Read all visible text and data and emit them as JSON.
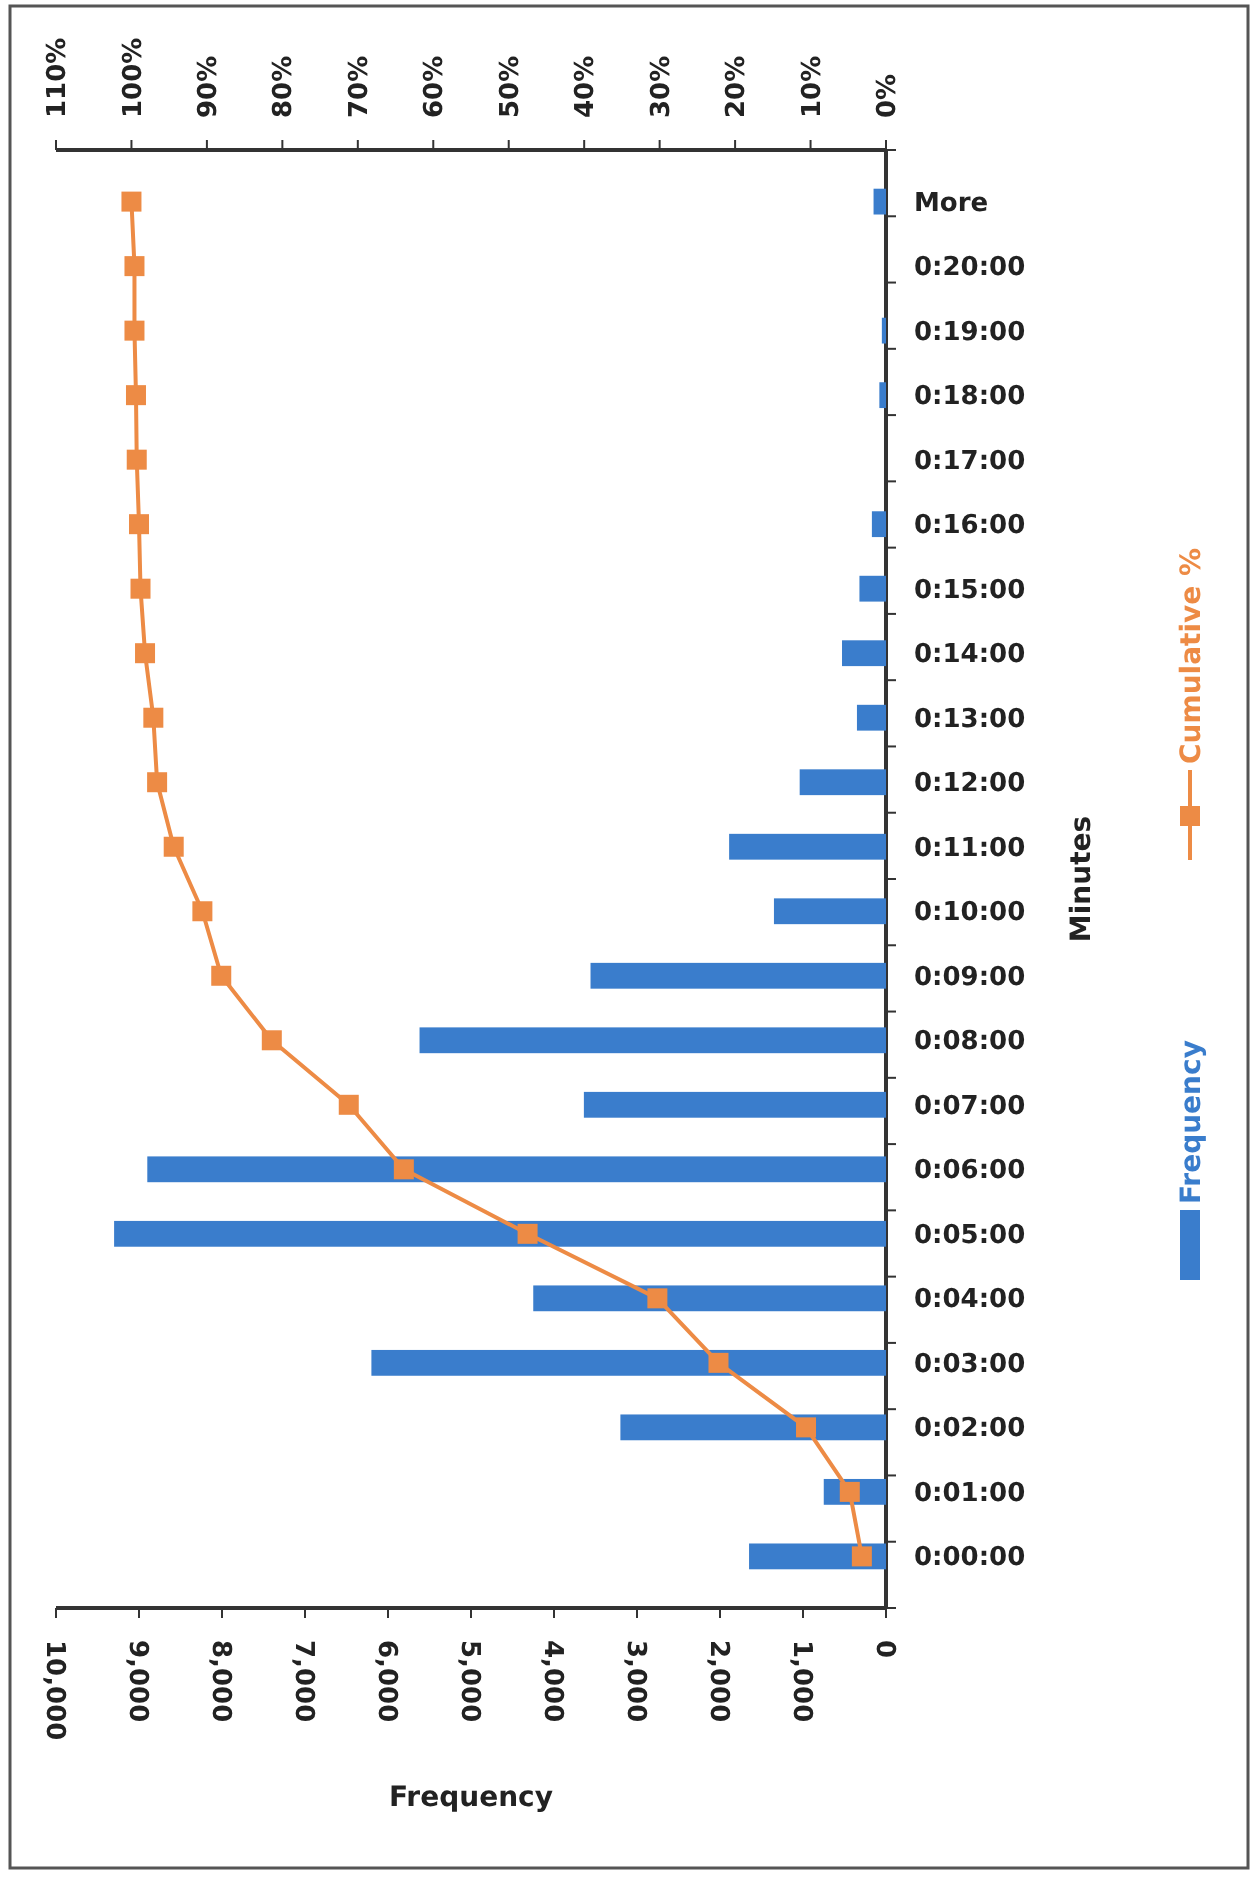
{
  "chart_data": {
    "type": "bar",
    "orientation": "horizontal",
    "xlabel": "Frequency",
    "ylabel": "Minutes",
    "categories": [
      "More",
      "0:20:00",
      "0:19:00",
      "0:18:00",
      "0:17:00",
      "0:16:00",
      "0:15:00",
      "0:14:00",
      "0:13:00",
      "0:12:00",
      "0:11:00",
      "0:10:00",
      "0:09:00",
      "0:08:00",
      "0:07:00",
      "0:06:00",
      "0:05:00",
      "0:04:00",
      "0:03:00",
      "0:02:00",
      "0:01:00",
      "0:00:00"
    ],
    "series": [
      {
        "name": "Frequency",
        "color": "#3a7dcc",
        "values": [
          150,
          0,
          50,
          80,
          0,
          170,
          320,
          530,
          350,
          1040,
          1890,
          1350,
          3560,
          5620,
          3640,
          8900,
          9300,
          4250,
          6200,
          3200,
          750,
          1650
        ]
      },
      {
        "name": "Cumulative %",
        "type": "line",
        "axis": "x2",
        "color": "#ed8b45",
        "values": [
          100,
          99.6,
          99.6,
          99.4,
          99.3,
          99.0,
          98.8,
          98.2,
          97.1,
          96.6,
          94.4,
          90.6,
          88.1,
          81.4,
          71.2,
          63.9,
          47.5,
          30.3,
          22.2,
          10.6,
          4.8,
          3.2
        ]
      }
    ],
    "xlim": [
      10000,
      0
    ],
    "xticks": [
      {
        "value": 10000,
        "label": "10,000"
      },
      {
        "value": 9000,
        "label": "9,000"
      },
      {
        "value": 8000,
        "label": "8,000"
      },
      {
        "value": 7000,
        "label": "7,000"
      },
      {
        "value": 6000,
        "label": "6,000"
      },
      {
        "value": 5000,
        "label": "5,000"
      },
      {
        "value": 4000,
        "label": "4,000"
      },
      {
        "value": 3000,
        "label": "3,000"
      },
      {
        "value": 2000,
        "label": "2,000"
      },
      {
        "value": 1000,
        "label": "1,000"
      },
      0
    ],
    "x2lim": [
      110,
      0
    ],
    "x2ticks": [
      {
        "value": 110,
        "label": "110%"
      },
      {
        "value": 100,
        "label": "100%"
      },
      {
        "value": 90,
        "label": "90%"
      },
      {
        "value": 80,
        "label": "80%"
      },
      {
        "value": 70,
        "label": "70%"
      },
      {
        "value": 60,
        "label": "60%"
      },
      {
        "value": 50,
        "label": "50%"
      },
      {
        "value": 40,
        "label": "40%"
      },
      {
        "value": 30,
        "label": "30%"
      },
      {
        "value": 20,
        "label": "20%"
      },
      {
        "value": 10,
        "label": "10%"
      },
      {
        "value": 0,
        "label": "0%"
      }
    ],
    "legend": "right",
    "marker": "square"
  }
}
